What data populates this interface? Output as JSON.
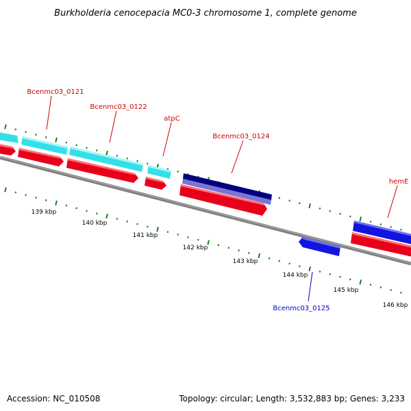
{
  "title": "Burkholderia cenocepacia MC0-3 chromosome 1, complete genome",
  "footer": {
    "accession": "Accession: NC_010508",
    "summary": "Topology: circular; Length: 3,532,883 bp; Genes: 3,233"
  },
  "colors": {
    "backbone": "#808080",
    "tick": "#1a7a1a",
    "label_red": "#cc0000",
    "label_blue": "#0000cc",
    "cyan": "#33e0e8",
    "red": "#e8001a",
    "navy": "#000080",
    "lavender": "#7b74d6",
    "blue": "#1414e0"
  },
  "scale_labels": [
    "139 kbp",
    "140 kbp",
    "141 kbp",
    "142 kbp",
    "143 kbp",
    "144 kbp",
    "145 kbp",
    "146 kbp"
  ],
  "gene_labels": [
    {
      "text": "Bcenmc03_0121",
      "color": "red"
    },
    {
      "text": "Bcenmc03_0122",
      "color": "red"
    },
    {
      "text": "atpC",
      "color": "red"
    },
    {
      "text": "Bcenmc03_0124",
      "color": "red"
    },
    {
      "text": "hemE",
      "color": "red"
    },
    {
      "text": "Bcenmc03_0125",
      "color": "blue"
    }
  ]
}
